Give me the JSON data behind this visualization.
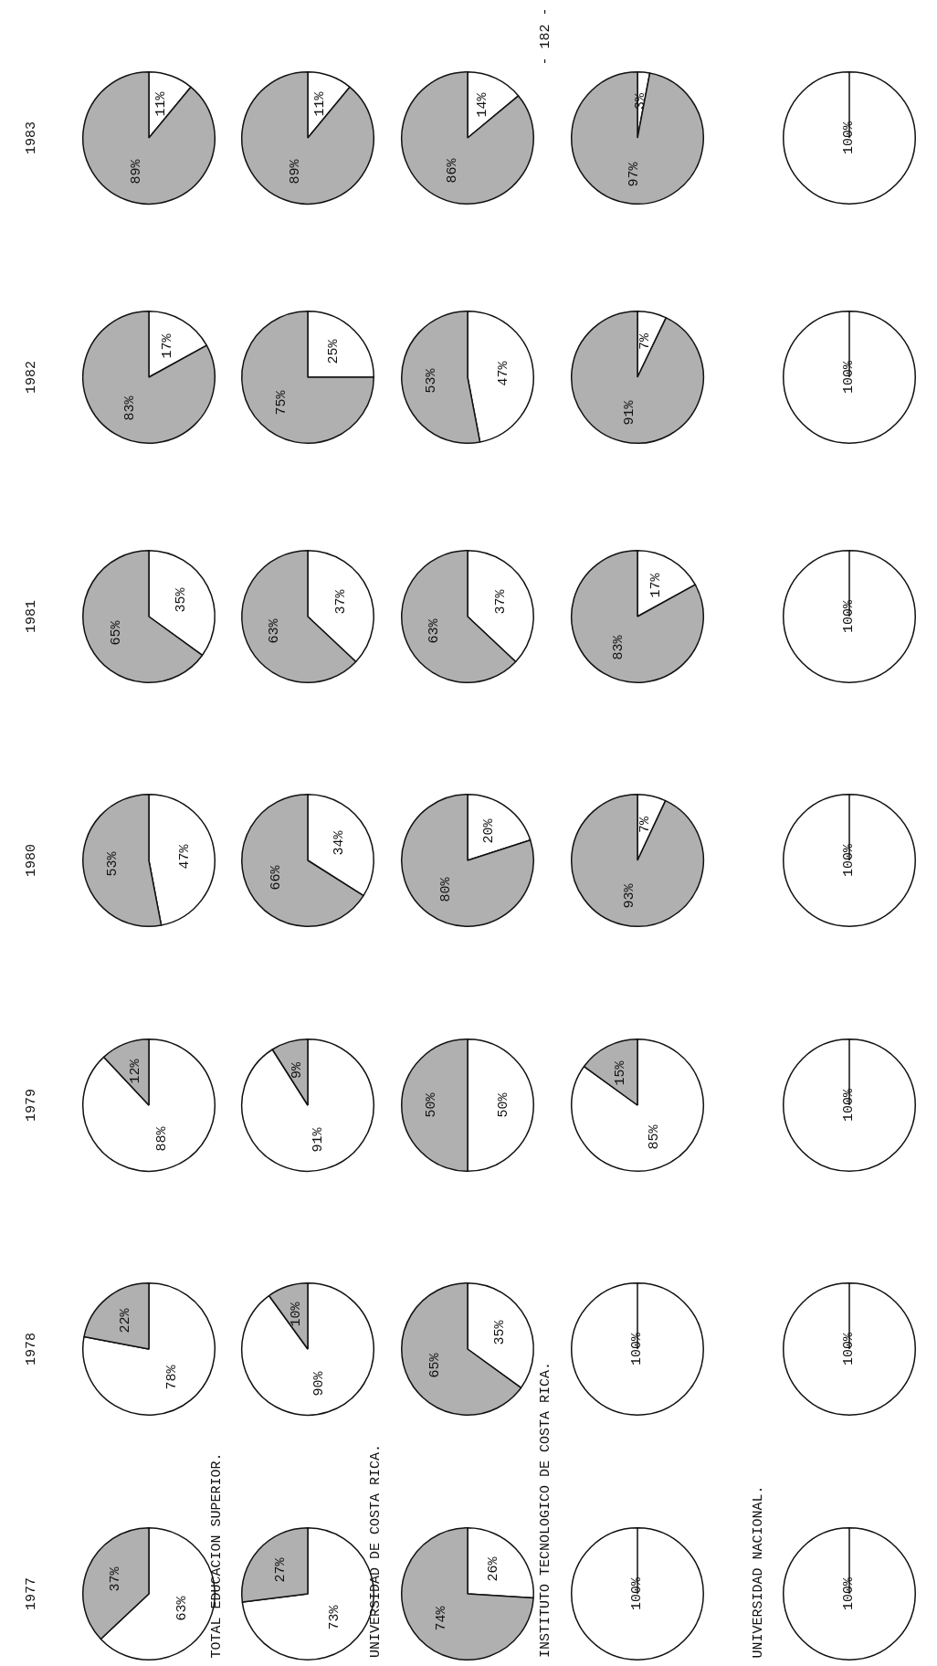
{
  "chart_data": [
    {
      "type": "pie",
      "title": "1983",
      "categories": [
        null,
        null
      ],
      "values": [
        11,
        89
      ],
      "colors": [
        "#ffffff",
        "#b0b0b0"
      ],
      "value_labels": [
        "11%",
        "89%"
      ]
    },
    {
      "type": "pie",
      "categories": [
        null,
        null
      ],
      "values": [
        11,
        89
      ],
      "colors": [
        "#ffffff",
        "#b0b0b0"
      ],
      "value_labels": [
        "11%",
        "89%"
      ]
    },
    {
      "type": "pie",
      "categories": [
        null,
        null
      ],
      "values": [
        14,
        86
      ],
      "colors": [
        "#ffffff",
        "#b0b0b0"
      ],
      "value_labels": [
        "14%",
        "86%"
      ],
      "annotations": [
        "- 182 -"
      ]
    },
    {
      "type": "pie",
      "categories": [
        null,
        null
      ],
      "values": [
        3,
        97
      ],
      "colors": [
        "#ffffff",
        "#b0b0b0"
      ],
      "value_labels": [
        "3%",
        "97%"
      ]
    },
    {
      "type": "pie",
      "categories": [
        null
      ],
      "values": [
        100
      ],
      "colors": [
        "#ffffff"
      ],
      "value_labels": [
        "100%"
      ]
    },
    {
      "type": "pie",
      "title": "1982",
      "categories": [
        null,
        null
      ],
      "values": [
        17,
        83
      ],
      "colors": [
        "#ffffff",
        "#b0b0b0"
      ],
      "value_labels": [
        "17%",
        "83%"
      ]
    },
    {
      "type": "pie",
      "categories": [
        null,
        null
      ],
      "values": [
        25,
        75
      ],
      "colors": [
        "#ffffff",
        "#b0b0b0"
      ],
      "value_labels": [
        "25%",
        "75%"
      ]
    },
    {
      "type": "pie",
      "categories": [
        null,
        null
      ],
      "values": [
        47,
        53
      ],
      "colors": [
        "#ffffff",
        "#b0b0b0"
      ],
      "value_labels": [
        "47%",
        "53%"
      ]
    },
    {
      "type": "pie",
      "categories": [
        null,
        null
      ],
      "values": [
        7,
        91
      ],
      "colors": [
        "#ffffff",
        "#b0b0b0"
      ],
      "value_labels": [
        "7%",
        "91%"
      ]
    },
    {
      "type": "pie",
      "categories": [
        null
      ],
      "values": [
        100
      ],
      "colors": [
        "#ffffff"
      ],
      "value_labels": [
        "100%"
      ]
    },
    {
      "type": "pie",
      "title": "1981",
      "categories": [
        null,
        null
      ],
      "values": [
        35,
        65
      ],
      "colors": [
        "#ffffff",
        "#b0b0b0"
      ],
      "value_labels": [
        "35%",
        "65%"
      ]
    },
    {
      "type": "pie",
      "categories": [
        null,
        null
      ],
      "values": [
        37,
        63
      ],
      "colors": [
        "#ffffff",
        "#b0b0b0"
      ],
      "value_labels": [
        "37%",
        "63%"
      ]
    },
    {
      "type": "pie",
      "categories": [
        null,
        null
      ],
      "values": [
        37,
        63
      ],
      "colors": [
        "#ffffff",
        "#b0b0b0"
      ],
      "value_labels": [
        "37%",
        "63%"
      ]
    },
    {
      "type": "pie",
      "categories": [
        null,
        null
      ],
      "values": [
        17,
        83
      ],
      "colors": [
        "#ffffff",
        "#b0b0b0"
      ],
      "value_labels": [
        "17%",
        "83%"
      ]
    },
    {
      "type": "pie",
      "categories": [
        null
      ],
      "values": [
        100
      ],
      "colors": [
        "#ffffff"
      ],
      "value_labels": [
        "100%"
      ]
    },
    {
      "type": "pie",
      "title": "1980",
      "categories": [
        null,
        null
      ],
      "values": [
        47,
        53
      ],
      "colors": [
        "#ffffff",
        "#b0b0b0"
      ],
      "value_labels": [
        "47%",
        "53%"
      ]
    },
    {
      "type": "pie",
      "categories": [
        null,
        null
      ],
      "values": [
        34,
        66
      ],
      "colors": [
        "#ffffff",
        "#b0b0b0"
      ],
      "value_labels": [
        "34%",
        "66%"
      ]
    },
    {
      "type": "pie",
      "categories": [
        null,
        null
      ],
      "values": [
        20,
        80
      ],
      "colors": [
        "#ffffff",
        "#b0b0b0"
      ],
      "value_labels": [
        "20%",
        "80%"
      ]
    },
    {
      "type": "pie",
      "categories": [
        null,
        null
      ],
      "values": [
        7,
        93
      ],
      "colors": [
        "#ffffff",
        "#b0b0b0"
      ],
      "value_labels": [
        "7%",
        "93%"
      ]
    },
    {
      "type": "pie",
      "categories": [
        null
      ],
      "values": [
        100
      ],
      "colors": [
        "#ffffff"
      ],
      "value_labels": [
        "100%"
      ]
    },
    {
      "type": "pie",
      "title": "1979",
      "categories": [
        null,
        null
      ],
      "values": [
        88,
        12
      ],
      "colors": [
        "#ffffff",
        "#b0b0b0"
      ],
      "value_labels": [
        "88%",
        "12%"
      ]
    },
    {
      "type": "pie",
      "categories": [
        null,
        null
      ],
      "values": [
        91,
        9
      ],
      "colors": [
        "#ffffff",
        "#b0b0b0"
      ],
      "value_labels": [
        "91%",
        "9%"
      ]
    },
    {
      "type": "pie",
      "categories": [
        null,
        null
      ],
      "values": [
        50,
        50
      ],
      "colors": [
        "#ffffff",
        "#b0b0b0"
      ],
      "value_labels": [
        "50%",
        "50%"
      ]
    },
    {
      "type": "pie",
      "categories": [
        null,
        null
      ],
      "values": [
        85,
        15
      ],
      "colors": [
        "#ffffff",
        "#b0b0b0"
      ],
      "value_labels": [
        "85%",
        "15%"
      ]
    },
    {
      "type": "pie",
      "categories": [
        null
      ],
      "values": [
        100
      ],
      "colors": [
        "#ffffff"
      ],
      "value_labels": [
        "100%"
      ]
    },
    {
      "type": "pie",
      "title": "1978",
      "categories": [
        null,
        null
      ],
      "values": [
        78,
        22
      ],
      "colors": [
        "#ffffff",
        "#b0b0b0"
      ],
      "value_labels": [
        "78%",
        "22%"
      ]
    },
    {
      "type": "pie",
      "categories": [
        null,
        null
      ],
      "values": [
        90,
        10
      ],
      "colors": [
        "#ffffff",
        "#b0b0b0"
      ],
      "value_labels": [
        "90%",
        "10%"
      ]
    },
    {
      "type": "pie",
      "categories": [
        null,
        null
      ],
      "values": [
        35,
        65
      ],
      "colors": [
        "#ffffff",
        "#b0b0b0"
      ],
      "value_labels": [
        "35%",
        "65%"
      ]
    },
    {
      "type": "pie",
      "categories": [
        null
      ],
      "values": [
        100
      ],
      "colors": [
        "#ffffff"
      ],
      "value_labels": [
        "100%"
      ]
    },
    {
      "type": "pie",
      "categories": [
        null
      ],
      "values": [
        100
      ],
      "colors": [
        "#ffffff"
      ],
      "value_labels": [
        "100%"
      ]
    },
    {
      "type": "pie",
      "title": "1977",
      "categories": [
        null,
        null
      ],
      "values": [
        63,
        37
      ],
      "colors": [
        "#ffffff",
        "#b0b0b0"
      ],
      "value_labels": [
        "63%",
        "37%"
      ]
    },
    {
      "type": "pie",
      "categories": [
        null,
        null
      ],
      "values": [
        73,
        27
      ],
      "colors": [
        "#ffffff",
        "#b0b0b0"
      ],
      "value_labels": [
        "73%",
        "27%"
      ],
      "annotations": [
        "TOTAL EDUCACION SUPERIOR."
      ]
    },
    {
      "type": "pie",
      "categories": [
        null,
        null
      ],
      "values": [
        26,
        74
      ],
      "colors": [
        "#ffffff",
        "#b0b0b0"
      ],
      "value_labels": [
        "26%",
        "74%"
      ],
      "annotations": [
        "UNIVERSIDAD DE COSTA RICA."
      ]
    },
    {
      "type": "pie",
      "categories": [
        null
      ],
      "values": [
        100
      ],
      "colors": [
        "#ffffff"
      ],
      "value_labels": [
        "100%"
      ],
      "annotations": [
        "INSTITUTO TECNOLOGICO DE COSTA RICA."
      ]
    },
    {
      "type": "pie",
      "categories": [
        null
      ],
      "values": [
        100
      ],
      "colors": [
        "#ffffff"
      ],
      "value_labels": [
        "100%"
      ],
      "annotations": [
        "UNIVERSIDAD NACIONAL."
      ]
    }
  ]
}
